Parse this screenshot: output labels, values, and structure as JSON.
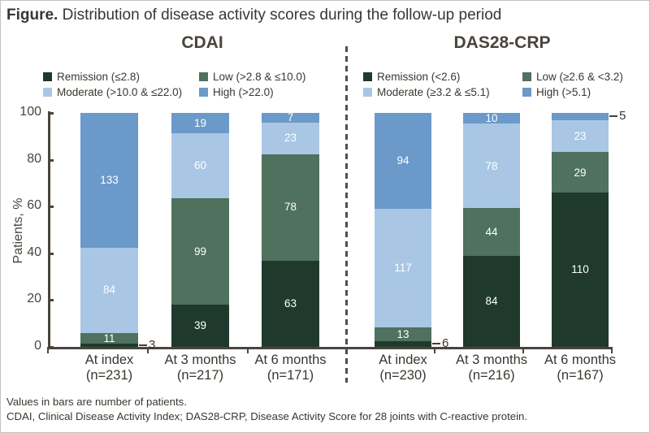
{
  "figure": {
    "title_prefix": "Figure.",
    "title_text": " Distribution of disease activity scores during the follow-up period"
  },
  "footnotes": {
    "line1": "Values in bars are number of patients.",
    "line2": "CDAI, Clinical Disease Activity Index; DAS28-CRP, Disease Activity Score for 28 joints with C-reactive protein."
  },
  "colors": {
    "remission": "#1f3a2d",
    "low": "#4f715e",
    "moderate": "#a9c7e5",
    "high": "#6b99c9",
    "axis": "#4a443d",
    "text": "#3b362f"
  },
  "chart_data": {
    "type": "bar",
    "subtype": "stacked-percentage",
    "title": "Figure. Distribution of disease activity scores during the follow-up period",
    "xlabel": "",
    "ylabel": "Patients, %",
    "ylim": [
      0,
      100
    ],
    "yticks": [
      0,
      20,
      40,
      60,
      80,
      100
    ],
    "grid": false,
    "legend_position": "top",
    "value_unit": "number of patients",
    "panels": [
      {
        "title": "CDAI",
        "legend": [
          {
            "key": "remission",
            "label": "Remission (≤2.8)"
          },
          {
            "key": "low",
            "label": "Low (>2.8 & ≤10.0)"
          },
          {
            "key": "moderate",
            "label": "Moderate (>10.0 & ≤22.0)"
          },
          {
            "key": "high",
            "label": "High (>22.0)"
          }
        ],
        "bars": [
          {
            "label": "At index",
            "sublabel": "(n=231)",
            "n": 231,
            "segments": [
              {
                "key": "remission",
                "value": 3,
                "label_outside": true
              },
              {
                "key": "low",
                "value": 11
              },
              {
                "key": "moderate",
                "value": 84
              },
              {
                "key": "high",
                "value": 133
              }
            ]
          },
          {
            "label": "At 3 months",
            "sublabel": "(n=217)",
            "n": 217,
            "segments": [
              {
                "key": "remission",
                "value": 39
              },
              {
                "key": "low",
                "value": 99
              },
              {
                "key": "moderate",
                "value": 60
              },
              {
                "key": "high",
                "value": 19
              }
            ]
          },
          {
            "label": "At 6 months",
            "sublabel": "(n=171)",
            "n": 171,
            "segments": [
              {
                "key": "remission",
                "value": 63
              },
              {
                "key": "low",
                "value": 78
              },
              {
                "key": "moderate",
                "value": 23
              },
              {
                "key": "high",
                "value": 7
              }
            ]
          }
        ]
      },
      {
        "title": "DAS28-CRP",
        "legend": [
          {
            "key": "remission",
            "label": "Remission (<2.6)"
          },
          {
            "key": "low",
            "label": "Low (≥2.6 & <3.2)"
          },
          {
            "key": "moderate",
            "label": "Moderate (≥3.2 & ≤5.1)"
          },
          {
            "key": "high",
            "label": "High (>5.1)"
          }
        ],
        "bars": [
          {
            "label": "At index",
            "sublabel": "(n=230)",
            "n": 230,
            "segments": [
              {
                "key": "remission",
                "value": 6,
                "label_outside": true
              },
              {
                "key": "low",
                "value": 13
              },
              {
                "key": "moderate",
                "value": 117
              },
              {
                "key": "high",
                "value": 94
              }
            ]
          },
          {
            "label": "At 3 months",
            "sublabel": "(n=216)",
            "n": 216,
            "segments": [
              {
                "key": "remission",
                "value": 84
              },
              {
                "key": "low",
                "value": 44
              },
              {
                "key": "moderate",
                "value": 78
              },
              {
                "key": "high",
                "value": 10
              }
            ]
          },
          {
            "label": "At 6 months",
            "sublabel": "(n=167)",
            "n": 167,
            "segments": [
              {
                "key": "remission",
                "value": 110
              },
              {
                "key": "low",
                "value": 29
              },
              {
                "key": "moderate",
                "value": 23
              },
              {
                "key": "high",
                "value": 5,
                "label_outside": true
              }
            ]
          }
        ]
      }
    ]
  }
}
